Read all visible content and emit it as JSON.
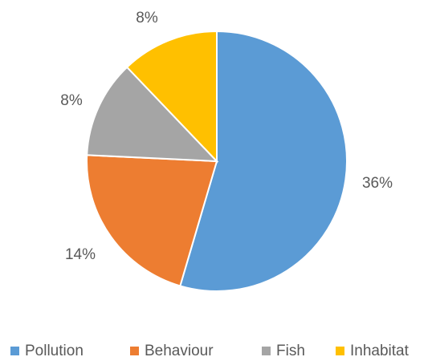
{
  "chart_data": {
    "type": "pie",
    "title": "",
    "categories": [
      "Pollution",
      "Behaviour",
      "Fish",
      "Inhabitat"
    ],
    "values": [
      36,
      14,
      8,
      8
    ],
    "labels": [
      "36%",
      "14%",
      "8%",
      "8%"
    ],
    "colors": [
      "#5B9BD5",
      "#ED7D31",
      "#A5A5A5",
      "#FFC000"
    ],
    "legend_position": "bottom"
  }
}
